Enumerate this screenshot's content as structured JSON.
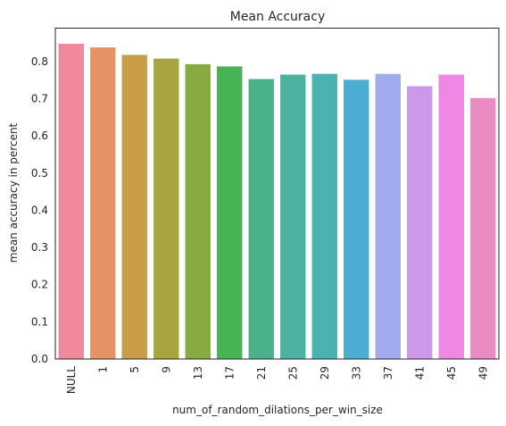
{
  "chart_data": {
    "type": "bar",
    "title": "Mean Accuracy",
    "xlabel": "num_of_random_dilations_per_win_size",
    "ylabel": "mean accuracy in percent",
    "categories": [
      "NULL",
      "1",
      "5",
      "9",
      "13",
      "17",
      "21",
      "25",
      "29",
      "33",
      "37",
      "41",
      "45",
      "49"
    ],
    "values": [
      0.848,
      0.838,
      0.818,
      0.808,
      0.793,
      0.787,
      0.753,
      0.765,
      0.767,
      0.751,
      0.767,
      0.734,
      0.765,
      0.702
    ],
    "colors": [
      "#f0899c",
      "#e59266",
      "#c79d47",
      "#a8a43e",
      "#87ab40",
      "#46b455",
      "#4bb08c",
      "#4db29f",
      "#4ab3b1",
      "#4cadd2",
      "#a3abf0",
      "#cc98e9",
      "#ef87e3",
      "#ea8cc2"
    ],
    "ylim": [
      0,
      0.89
    ],
    "yticks": [
      "0.0",
      "0.1",
      "0.2",
      "0.3",
      "0.4",
      "0.5",
      "0.6",
      "0.7",
      "0.8"
    ],
    "grid": false,
    "legend": "none"
  }
}
